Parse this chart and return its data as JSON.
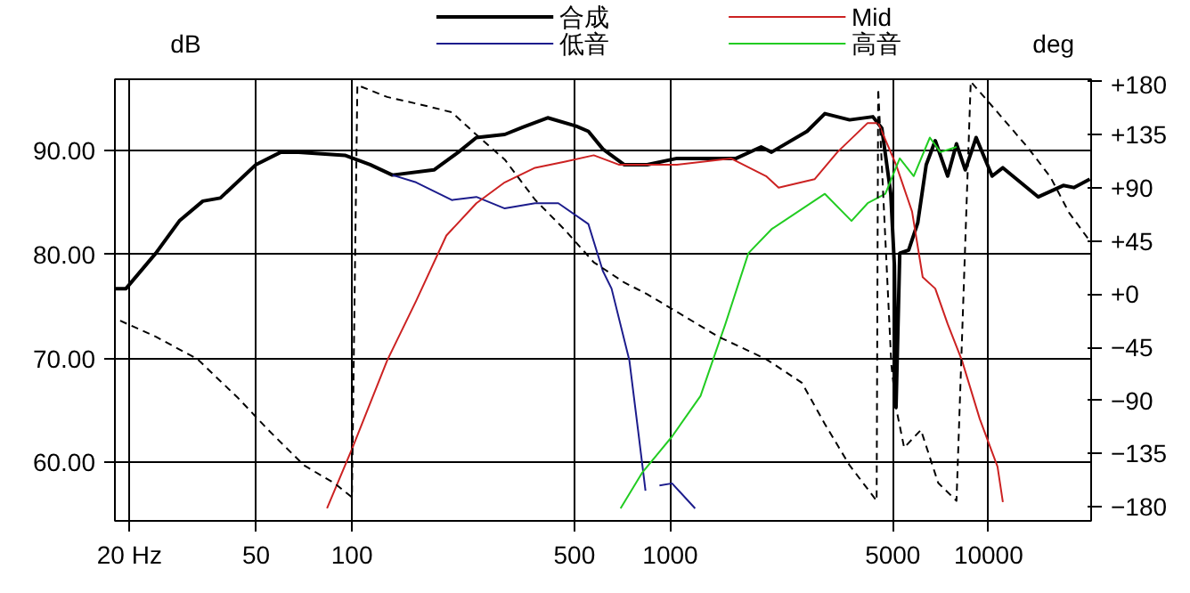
{
  "chart_data": {
    "type": "line",
    "ylabel": "dB",
    "y2label": "deg",
    "log": "x",
    "grid": true,
    "legend": "top",
    "xlim": [
      18,
      21000
    ],
    "xticks": [
      {
        "value": 20,
        "label": "20 Hz"
      },
      50,
      100,
      500,
      1000,
      5000,
      10000
    ],
    "ylim": [
      54.4,
      96.8
    ],
    "yticks": [
      {
        "value": 60,
        "label": "60.00"
      },
      {
        "value": 70,
        "label": "70.00"
      },
      {
        "value": 80,
        "label": "80.00"
      },
      {
        "value": 90,
        "label": "90.00"
      }
    ],
    "y2lim": [
      -192,
      182
    ],
    "y2ticks": [
      {
        "value": 180,
        "label": "+180"
      },
      {
        "value": 135,
        "label": "+135"
      },
      {
        "value": 90,
        "label": "+90"
      },
      {
        "value": 45,
        "label": "+45"
      },
      {
        "value": 0,
        "label": "+0"
      },
      -45,
      -90,
      -135,
      -180
    ],
    "series": [
      {
        "name": "合成",
        "color": "#000000",
        "x": [
          18.1,
          19.5,
          24.2,
          28.7,
          34,
          38.6,
          49.9,
          59.8,
          68,
          95,
          114,
          134,
          181,
          216,
          246,
          302,
          344,
          412,
          506,
          553,
          614,
          716,
          846,
          1050,
          1610,
          1930,
          2080,
          2690,
          3060,
          3660,
          4330,
          4620,
          4930,
          5060,
          5120,
          5260,
          5610,
          5990,
          6370,
          6800,
          7440,
          7930,
          8450,
          9140,
          10260,
          11090,
          14330,
          17170,
          18530,
          20800
        ],
        "values": [
          76.7,
          76.7,
          80.1,
          83.2,
          85.1,
          85.4,
          88.6,
          89.8,
          89.8,
          89.5,
          88.6,
          87.6,
          88.1,
          89.8,
          91.2,
          91.5,
          92.2,
          93.1,
          92.3,
          91.8,
          90.1,
          88.6,
          88.6,
          89.2,
          89.2,
          90.3,
          89.8,
          91.8,
          93.5,
          92.9,
          93.2,
          92.1,
          85.8,
          78.9,
          65.3,
          80.1,
          80.4,
          83.0,
          88.6,
          90.9,
          87.5,
          90.6,
          88.1,
          91.2,
          87.5,
          88.3,
          85.5,
          86.6,
          86.4,
          87.2
        ]
      },
      {
        "name": "低音",
        "color": "#1c1c8c",
        "x": [
          134,
          159,
          206,
          246,
          302,
          376,
          445,
          553,
          614,
          654,
          744,
          793,
          836,
          880,
          925,
          1013,
          1197
        ],
        "values": [
          87.6,
          86.9,
          85.2,
          85.5,
          84.4,
          84.9,
          84.9,
          82.9,
          78.4,
          76.7,
          69.8,
          63,
          57.3,
          null,
          57.8,
          58,
          55.6
        ]
      },
      {
        "name": "Mid",
        "color": "#cc2222",
        "x": [
          83.5,
          100,
          129,
          159,
          198,
          246,
          302,
          376,
          468,
          575,
          689,
          1050,
          1550,
          2000,
          2190,
          2840,
          3350,
          4170,
          4500,
          5120,
          5750,
          6210,
          6800,
          7440,
          8250,
          9380,
          10670,
          11090
        ],
        "values": [
          55.6,
          61.3,
          69.8,
          75.5,
          81.8,
          84.9,
          86.9,
          88.3,
          88.9,
          89.5,
          88.6,
          88.6,
          89.2,
          87.5,
          86.4,
          87.2,
          89.8,
          92.6,
          92.6,
          88.6,
          84.1,
          77.8,
          76.7,
          73.3,
          69.8,
          64.2,
          59.6,
          56.2
        ]
      },
      {
        "name": "高音",
        "color": "#22cc22",
        "x": [
          698,
          815,
          1013,
          1245,
          1490,
          1760,
          2080,
          3060,
          3710,
          4170,
          4740,
          5260,
          5820,
          6540,
          7060,
          7930
        ],
        "values": [
          55.6,
          59.0,
          62.5,
          66.4,
          73.3,
          80.1,
          82.4,
          85.8,
          83.2,
          84.9,
          85.8,
          89.2,
          87.5,
          91.2,
          89.8,
          90.3
        ]
      },
      {
        "color": "#000000",
        "axis": "y2",
        "line_style": "dashed",
        "x": [
          18.7,
          24.2,
          32.7,
          43.9,
          54.6,
          70.7,
          88,
          100,
          104,
          129,
          174,
          206,
          246,
          302,
          376,
          468,
          575,
          716,
          846,
          1050,
          1416,
          2000,
          2590,
          3060,
          3660,
          4170,
          4450,
          4500,
          4950,
          5120,
          5430,
          6130,
          6950,
          7930,
          8790,
          10670,
          13300,
          15660,
          17900,
          20800
        ],
        "values": [
          -22.5,
          -36,
          -55,
          -88,
          -115,
          -145,
          -160,
          -172,
          177,
          167,
          159,
          154,
          135,
          114,
          80,
          54,
          27,
          10,
          0,
          -15,
          -36,
          -55,
          -75,
          -110,
          -145,
          -165,
          -175,
          174,
          -60,
          -96,
          -130,
          -115,
          -160,
          -175,
          180,
          154,
          124,
          99,
          69,
          45
        ]
      }
    ]
  }
}
